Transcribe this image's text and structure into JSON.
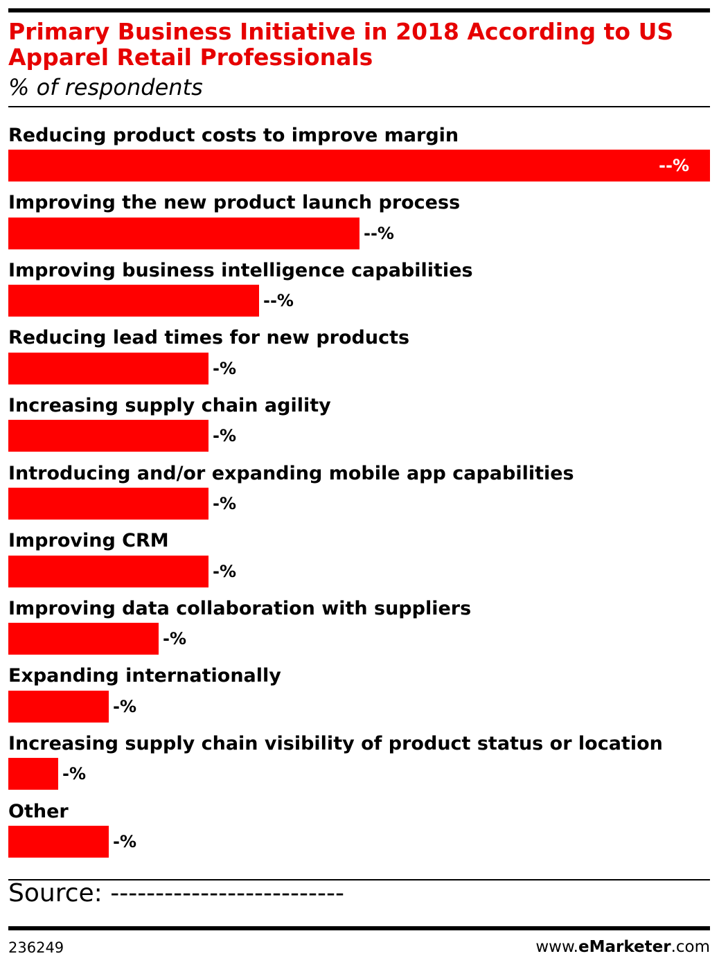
{
  "chart_data": {
    "type": "bar",
    "orientation": "horizontal",
    "title": "Primary Business Initiative in 2018 According to US Apparel Retail Professionals",
    "subtitle": "% of respondents",
    "categories": [
      "Reducing product costs to improve margin",
      "Improving the new product launch process",
      "Improving business intelligence capabilities",
      "Reducing lead times for new products",
      "Increasing supply chain agility",
      "Introducing and/or expanding mobile app capabilities",
      "Improving CRM",
      "Improving data collaboration with suppliers",
      "Expanding internationally",
      "Increasing supply chain visibility of product status or location",
      "Other"
    ],
    "values": [
      28,
      14,
      10,
      8,
      8,
      8,
      8,
      6,
      4,
      2,
      4
    ],
    "value_labels": [
      "--%",
      "--%",
      "--%",
      "-%",
      "-%",
      "-%",
      "-%",
      "-%",
      "-%",
      "-%",
      "-%"
    ],
    "xlabel": "",
    "ylabel": "",
    "grid": false,
    "legend": "none"
  },
  "footer": {
    "source": "Source: --------------------------",
    "chart_number": "236249",
    "brand": {
      "prefix": "www.",
      "name": "eMarketer",
      "suffix": ".com"
    }
  },
  "colors": {
    "title": "#e60000",
    "bar": "#ff0000",
    "value_label_inside": "#ffffff",
    "text": "#000000",
    "rules": "#000000"
  }
}
